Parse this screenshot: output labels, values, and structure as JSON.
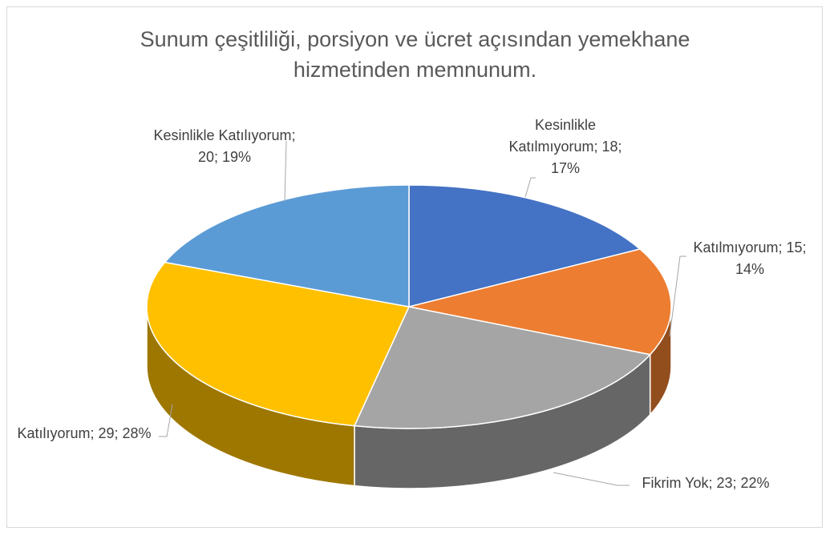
{
  "chart_data": {
    "type": "pie3d",
    "title": "Sunum çeşitliliği, porsiyon ve ücret açısından yemekhane hizmetinden memnunum.",
    "categories": [
      "Kesinlikle Katılmıyorum",
      "Katılmıyorum",
      "Fikrim Yok",
      "Katılıyorum",
      "Kesinlikle Katılıyorum"
    ],
    "values": [
      18,
      15,
      23,
      29,
      20
    ],
    "value_labels": [
      "Kesinlikle Katılmıyorum; 18; 17%",
      "Katılmıyorum; 15; 14%",
      "Fikrim Yok; 23; 22%",
      "Katılıyorum; 29; 28%",
      "Kesinlikle Katılıyorum; 20; 19%"
    ],
    "colors": [
      "#4472c4",
      "#ed7d31",
      "#a5a5a5",
      "#ffc000",
      "#5b9bd5"
    ]
  }
}
